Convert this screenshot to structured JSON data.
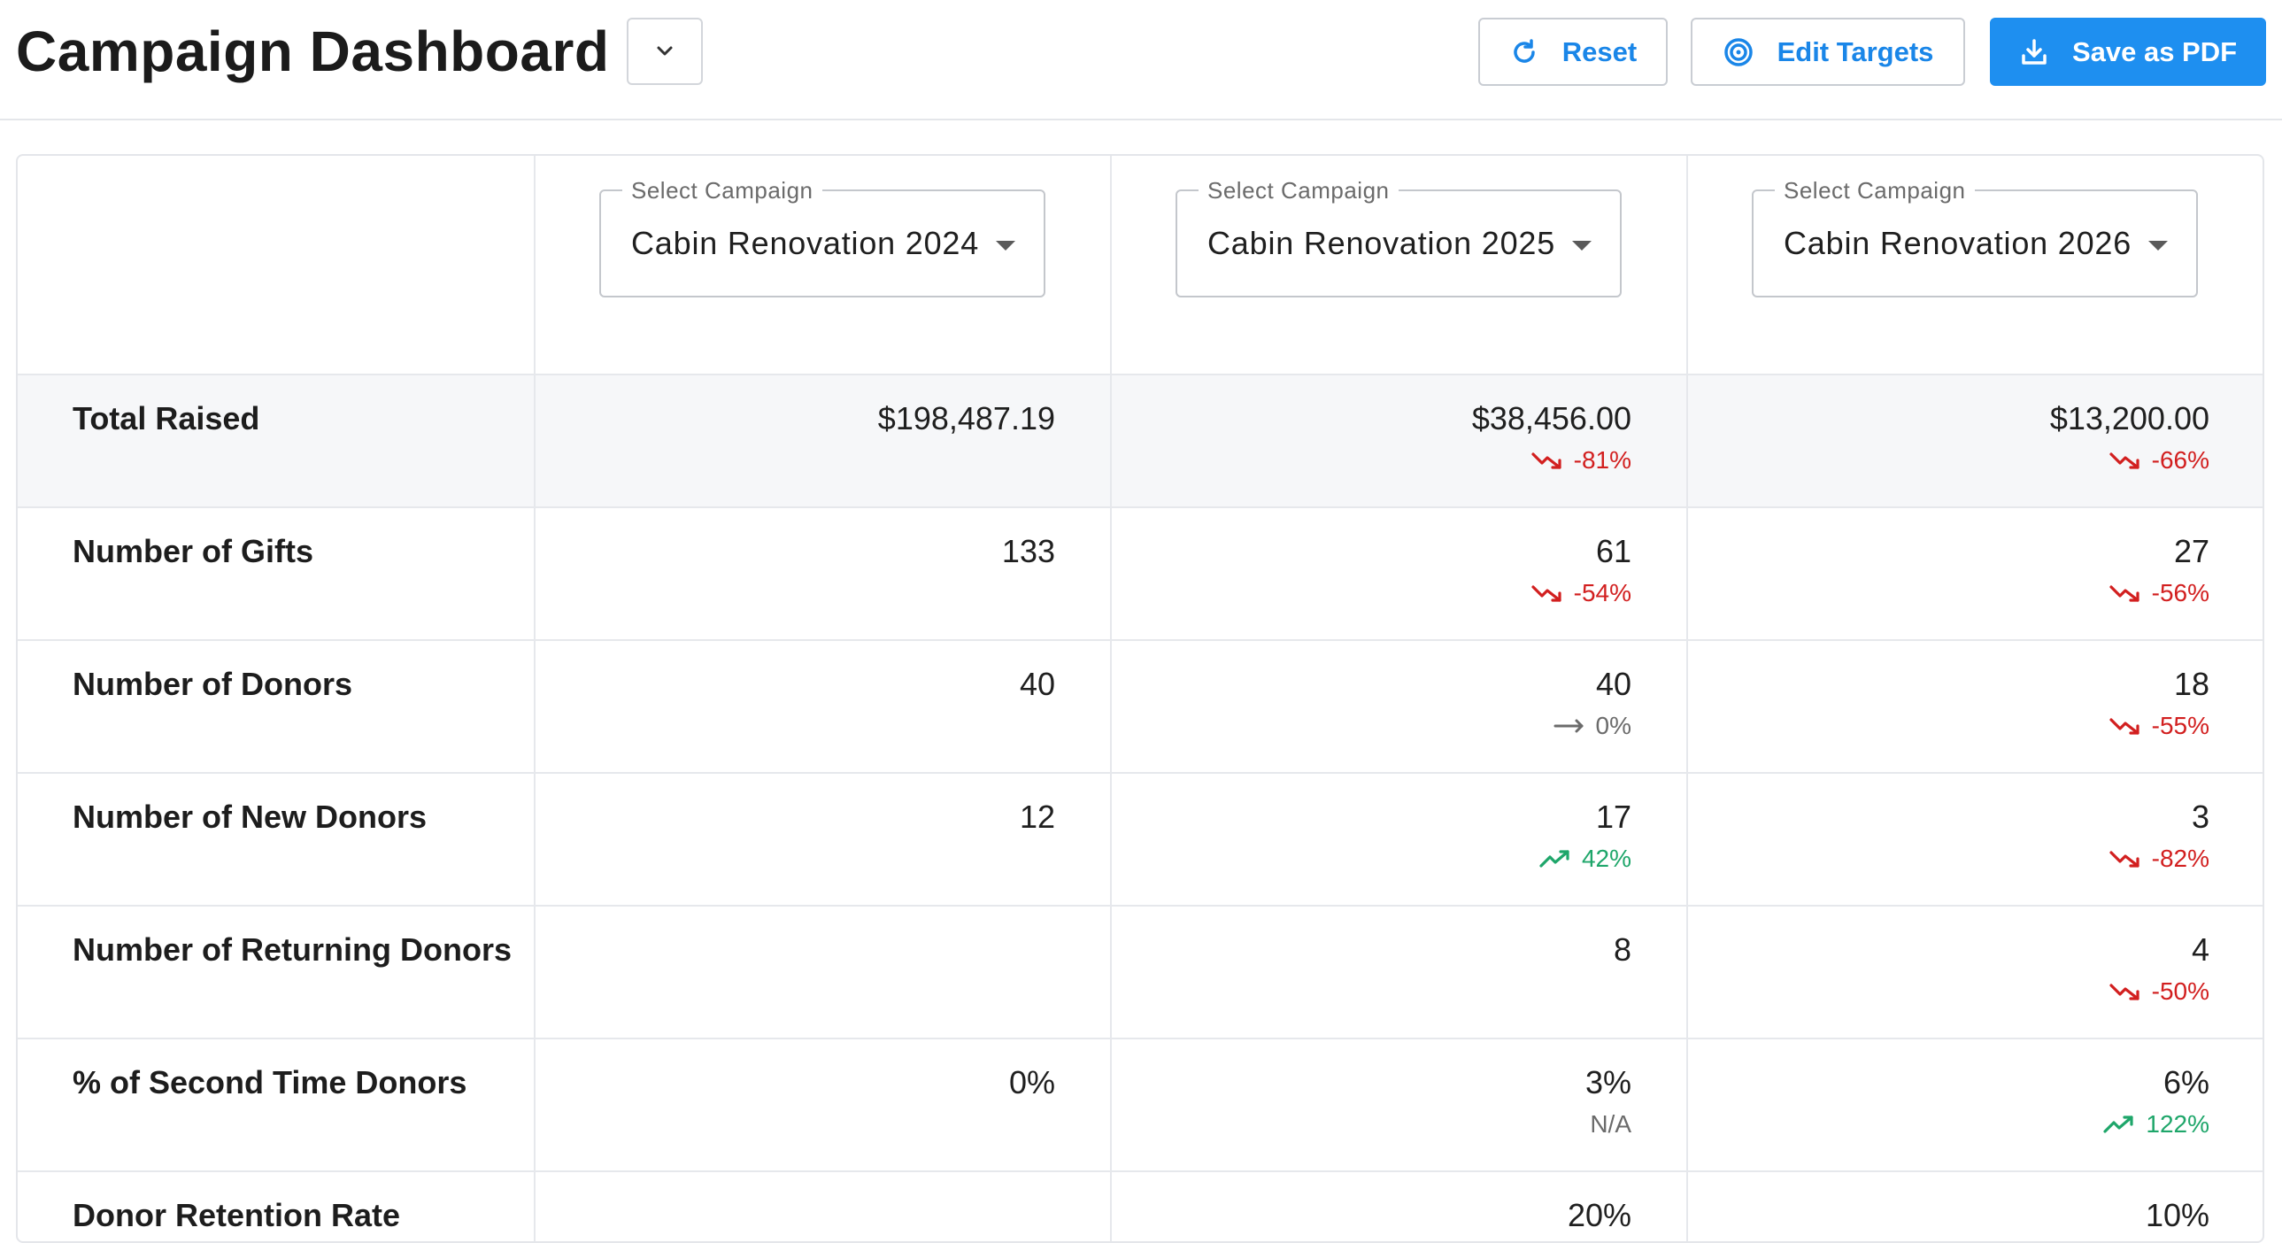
{
  "header": {
    "title": "Campaign Dashboard",
    "title_dropdown_icon": "chevron-down-icon",
    "buttons": {
      "reset": {
        "label": "Reset",
        "icon": "refresh-icon"
      },
      "edit_targets": {
        "label": "Edit Targets",
        "icon": "target-icon"
      },
      "save_pdf": {
        "label": "Save as PDF",
        "icon": "download-icon"
      }
    },
    "accent_color": "#1e8ff0"
  },
  "campaign_selects": [
    {
      "label": "Select Campaign",
      "value": "Cabin Renovation 2024"
    },
    {
      "label": "Select Campaign",
      "value": "Cabin Renovation 2025"
    },
    {
      "label": "Select Campaign",
      "value": "Cabin Renovation 2026"
    }
  ],
  "rows": [
    {
      "label": "Total Raised",
      "cells": [
        {
          "value": "$198,487.19",
          "delta": "",
          "trend": ""
        },
        {
          "value": "$38,456.00",
          "delta": "-81%",
          "trend": "down"
        },
        {
          "value": "$13,200.00",
          "delta": "-66%",
          "trend": "down"
        }
      ]
    },
    {
      "label": "Number of Gifts",
      "cells": [
        {
          "value": "133",
          "delta": "",
          "trend": ""
        },
        {
          "value": "61",
          "delta": "-54%",
          "trend": "down"
        },
        {
          "value": "27",
          "delta": "-56%",
          "trend": "down"
        }
      ]
    },
    {
      "label": "Number of Donors",
      "cells": [
        {
          "value": "40",
          "delta": "",
          "trend": ""
        },
        {
          "value": "40",
          "delta": "0%",
          "trend": "flat"
        },
        {
          "value": "18",
          "delta": "-55%",
          "trend": "down"
        }
      ]
    },
    {
      "label": "Number of New Donors",
      "cells": [
        {
          "value": "12",
          "delta": "",
          "trend": ""
        },
        {
          "value": "17",
          "delta": "42%",
          "trend": "up"
        },
        {
          "value": "3",
          "delta": "-82%",
          "trend": "down"
        }
      ]
    },
    {
      "label": "Number of Returning Donors",
      "cells": [
        {
          "value": "",
          "delta": "",
          "trend": ""
        },
        {
          "value": "8",
          "delta": "",
          "trend": ""
        },
        {
          "value": "4",
          "delta": "-50%",
          "trend": "down"
        }
      ]
    },
    {
      "label": "% of Second Time Donors",
      "cells": [
        {
          "value": "0%",
          "delta": "",
          "trend": ""
        },
        {
          "value": "3%",
          "delta": "N/A",
          "trend": "na"
        },
        {
          "value": "6%",
          "delta": "122%",
          "trend": "up"
        }
      ]
    },
    {
      "label": "Donor Retention Rate",
      "cells": [
        {
          "value": "",
          "delta": "",
          "trend": ""
        },
        {
          "value": "20%",
          "delta": "",
          "trend": ""
        },
        {
          "value": "10%",
          "delta": "",
          "trend": ""
        }
      ]
    }
  ],
  "colors": {
    "down": "#d21f1f",
    "up": "#1ea66a",
    "flat": "#6b6b6b"
  }
}
